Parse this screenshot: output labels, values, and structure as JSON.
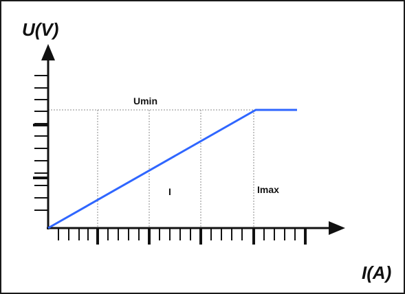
{
  "diagram": {
    "y_axis_title": "U(V)",
    "x_axis_title": "I(A)",
    "labels": {
      "umin": "Umin",
      "mid": "I",
      "imax": "Imax"
    },
    "line_color": "#2f66ff",
    "axis_color": "#111111",
    "guide_color": "#7a7a7a"
  }
}
